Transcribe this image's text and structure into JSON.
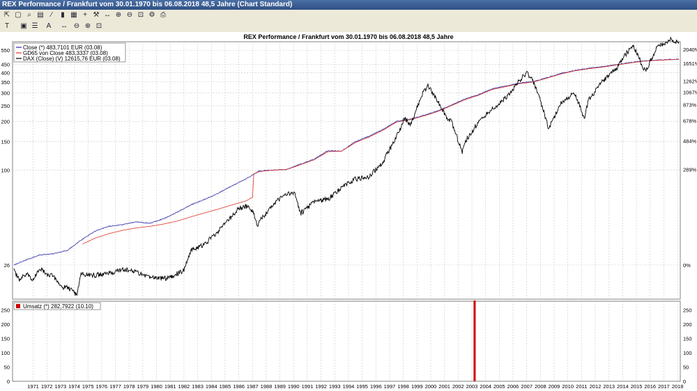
{
  "window": {
    "title": "REX Performance / Frankfurt vom 30.01.1970 bis 06.08.2018 48,5 Jahre (Chart Standard)"
  },
  "toolbar": {
    "icons": [
      "cursor-icon",
      "select-icon",
      "zoom-icon",
      "chart-icon",
      "line-icon",
      "bar-icon",
      "grid-icon",
      "cross-icon",
      "tool-icon",
      "scroll-icon",
      "zoom-in-icon",
      "zoom-out-icon",
      "zoom-fit-icon"
    ]
  },
  "chart_data": [
    {
      "type": "line",
      "title": "REX Performance / Frankfurt vom 30.01.1970 bis 06.08.2018 48,5 Jahre",
      "x_ticks": [
        "1971",
        "1972",
        "1973",
        "1974",
        "1975",
        "1976",
        "1977",
        "1978",
        "1979",
        "1980",
        "1981",
        "1982",
        "1983",
        "1984",
        "1985",
        "1986",
        "1987",
        "1988",
        "1989",
        "1990",
        "1991",
        "1992",
        "1993",
        "1994",
        "1995",
        "1996",
        "1997",
        "1998",
        "1999",
        "2000",
        "2001",
        "2002",
        "2003",
        "2004",
        "2005",
        "2006",
        "2007",
        "2008",
        "2009",
        "2010",
        "2011",
        "2012",
        "2013",
        "2014",
        "2015",
        "2016",
        "2017",
        "2018"
      ],
      "y_scale": "log",
      "y_ticks_left": [
        "26",
        "100",
        "150",
        "200",
        "250",
        "300",
        "350",
        "400",
        "450",
        "550"
      ],
      "y_ticks_right": [
        "0%",
        "289%",
        "484%",
        "678%",
        "873%",
        "1067%",
        "1262%",
        "1651%",
        "2040%"
      ],
      "legend": [
        {
          "label": "Close (*) 483,7101 EUR (03.08)",
          "color": "#2a2aa8"
        },
        {
          "label": "GD65 von Close 483,3337 (03.08)",
          "color": "#e03020"
        },
        {
          "label": "DAX (Close) (V) 12615,76 EUR (03.08)",
          "color": "#000000"
        }
      ],
      "series": [
        {
          "name": "Close (*) 483,7101 EUR (03.08)",
          "color": "#2a2aa8",
          "x": [
            1970.1,
            1971,
            1972,
            1973,
            1974,
            1975,
            1976,
            1977,
            1978,
            1979,
            1980,
            1981,
            1982,
            1983,
            1984,
            1985,
            1986,
            1987,
            1988,
            1989,
            1990,
            1991,
            1992,
            1993,
            1994,
            1995,
            1996,
            1997,
            1998,
            1999,
            2000,
            2001,
            2002,
            2003,
            2004,
            2005,
            2006,
            2007,
            2008,
            2009,
            2010,
            2011,
            2012,
            2013,
            2014,
            2015,
            2016,
            2017,
            2018.6
          ],
          "y": [
            26,
            28,
            30,
            30.5,
            32,
            37,
            42,
            45,
            46,
            48,
            47,
            50,
            55,
            61,
            66,
            72,
            80,
            88,
            99,
            100,
            101,
            109,
            117,
            132,
            131,
            150,
            162,
            178,
            200,
            206,
            218,
            232,
            252,
            275,
            293,
            318,
            330,
            345,
            352,
            373,
            395,
            413,
            425,
            435,
            448,
            461,
            472,
            478,
            483.7
          ]
        },
        {
          "name": "GD65 von Close 483,3337 (03.08)",
          "color": "#e03020",
          "x": [
            1975.1,
            1976,
            1977,
            1978,
            1979,
            1980,
            1981,
            1982,
            1983,
            1984,
            1985,
            1986,
            1987,
            1987.5,
            1987.6,
            1988,
            1989,
            1990,
            1991,
            1992,
            1993,
            1994,
            1995,
            1996,
            1997,
            1998,
            1999,
            2000,
            2001,
            2002,
            2003,
            2004,
            2005,
            2006,
            2007,
            2008,
            2009,
            2010,
            2011,
            2012,
            2013,
            2014,
            2015,
            2016,
            2017,
            2018.6
          ],
          "y": [
            35,
            38,
            40.5,
            42.5,
            44,
            45,
            46.5,
            48.5,
            51.5,
            54.5,
            57.5,
            61,
            64.5,
            68,
            95,
            98,
            100,
            101,
            108,
            116,
            130,
            131,
            148,
            160,
            176,
            198,
            205,
            216,
            230,
            250,
            272,
            290,
            315,
            328,
            342,
            350,
            370,
            392,
            410,
            422,
            432,
            445,
            458,
            470,
            476,
            483.3
          ]
        },
        {
          "name": "DAX (Close) (V) 12615,76 EUR (03.08)",
          "color": "#000000",
          "x": [
            1970.1,
            1970.5,
            1971,
            1971.5,
            1972,
            1972.5,
            1973,
            1973.5,
            1974,
            1974.7,
            1975,
            1976,
            1977,
            1978,
            1979,
            1980,
            1981,
            1981.7,
            1982,
            1982.5,
            1983,
            1984,
            1985,
            1986,
            1986.5,
            1987,
            1987.5,
            1987.9,
            1988,
            1989,
            1990,
            1990.6,
            1991,
            1992,
            1993,
            1994,
            1995,
            1996,
            1997,
            1998,
            1998.6,
            1999,
            2000,
            2000.3,
            2001,
            2001.7,
            2002,
            2002.8,
            2003,
            2004,
            2005,
            2006,
            2007,
            2007.5,
            2008,
            2008.5,
            2009.1,
            2010,
            2011,
            2011.7,
            2012,
            2013,
            2014,
            2015,
            2015.3,
            2016,
            2016.2,
            2017,
            2018,
            2018.6
          ],
          "y": [
            24,
            21,
            23,
            21,
            25,
            23,
            22,
            19,
            19,
            17,
            23,
            22.5,
            23,
            24.5,
            23.5,
            22,
            21.5,
            22,
            23,
            24,
            32,
            35,
            42,
            52,
            58,
            60,
            56,
            45,
            48,
            62,
            71,
            72,
            54,
            64,
            66,
            78,
            88,
            91,
            112,
            160,
            210,
            190,
            310,
            330,
            270,
            210,
            200,
            130,
            150,
            200,
            240,
            280,
            360,
            400,
            350,
            270,
            180,
            260,
            300,
            210,
            270,
            350,
            420,
            560,
            580,
            430,
            410,
            570,
            640,
            620
          ]
        },
        {
          "name": "Umsatz (*) 282,7922 (10.10)",
          "color": "#cc0000",
          "x": [
            2003.7
          ],
          "y": [
            282.7922
          ]
        }
      ]
    }
  ],
  "volume_panel": {
    "legend_label": "Umsatz (*) 282,7922 (10.10)",
    "color": "#cc0000",
    "y_ticks": [
      "0",
      "50",
      "100",
      "150",
      "200",
      "250"
    ]
  }
}
